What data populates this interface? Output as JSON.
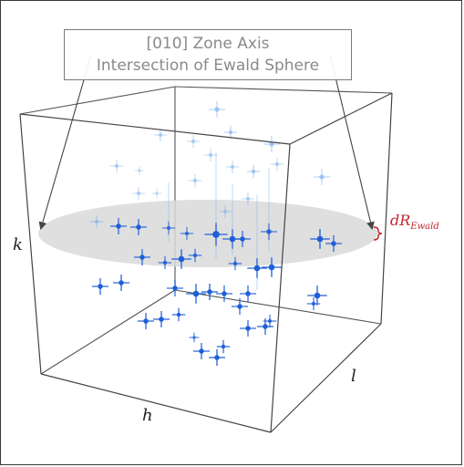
{
  "callout": {
    "line1": "[010] Zone Axis",
    "line2": "Intersection of Ewald Sphere"
  },
  "axes": {
    "h": "h",
    "k": "k",
    "l": "l"
  },
  "ewald_shell_label": {
    "main": "dR",
    "subscript": "Ewald"
  },
  "colors": {
    "spot_blue": "#1f5fd6",
    "spot_light": "#7fb2ee",
    "slice_gray": "#d9d9d9",
    "label_red": "#c0262d",
    "edge": "#444444"
  }
}
